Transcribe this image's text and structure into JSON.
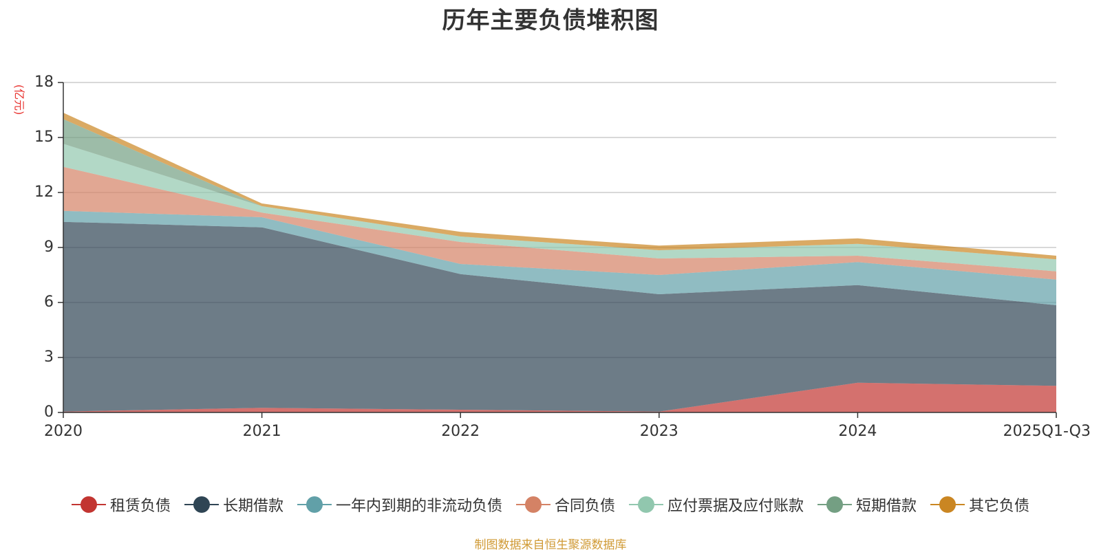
{
  "chart_data": {
    "type": "area",
    "stacked": true,
    "title": "历年主要负债堆积图",
    "ylabel": "(亿元)",
    "xlabel": "",
    "categories": [
      "2020",
      "2021",
      "2022",
      "2023",
      "2024",
      "2025Q1-Q3"
    ],
    "ylim": [
      0,
      18
    ],
    "yticks": [
      0,
      3,
      6,
      9,
      12,
      15,
      18
    ],
    "grid": true,
    "legend_position": "bottom",
    "series": [
      {
        "name": "租赁负债",
        "color": "#c23531",
        "values": [
          0.05,
          0.25,
          0.15,
          0.05,
          1.62,
          1.45
        ]
      },
      {
        "name": "长期借款",
        "color": "#2f4554",
        "values": [
          10.35,
          9.85,
          7.4,
          6.4,
          5.33,
          4.4
        ]
      },
      {
        "name": "一年内到期的非流动负债",
        "color": "#61a0a8",
        "values": [
          0.6,
          0.55,
          0.55,
          1.05,
          1.25,
          1.4
        ]
      },
      {
        "name": "合同负债",
        "color": "#d48265",
        "values": [
          2.4,
          0.25,
          1.2,
          0.9,
          0.35,
          0.45
        ]
      },
      {
        "name": "应付票据及应付账款",
        "color": "#91c7ae",
        "values": [
          1.25,
          0.35,
          0.3,
          0.45,
          0.65,
          0.65
        ]
      },
      {
        "name": "短期借款",
        "color": "#749f83",
        "values": [
          1.35,
          0.0,
          0.0,
          0.0,
          0.0,
          0.0
        ]
      },
      {
        "name": "其它负债",
        "color": "#ca8622",
        "values": [
          0.35,
          0.15,
          0.25,
          0.25,
          0.3,
          0.2
        ]
      }
    ]
  },
  "footer": {
    "source": "制图数据来自恒生聚源数据库"
  }
}
